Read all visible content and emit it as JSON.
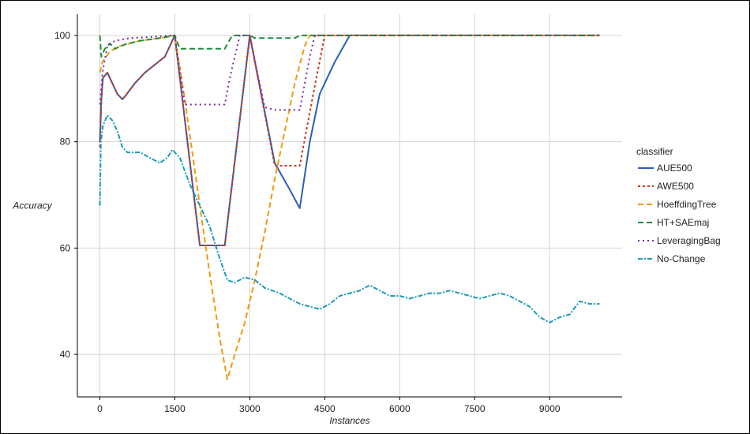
{
  "chart_data": {
    "type": "line",
    "title": "",
    "xlabel": "Instances",
    "ylabel": "Accuracy",
    "xlim": [
      -450,
      10450
    ],
    "ylim": [
      32,
      104
    ],
    "x_ticks": [
      0,
      1500,
      3000,
      4500,
      6000,
      7500,
      9000
    ],
    "x_tick_labels": [
      "0",
      "1500",
      "3000",
      "4500",
      "6000",
      "7500",
      "9000"
    ],
    "y_ticks": [
      40,
      60,
      80,
      100
    ],
    "y_tick_labels": [
      "40",
      "60",
      "80",
      "100"
    ],
    "grid": true,
    "legend": {
      "title": "classifier",
      "position": "right"
    },
    "series": [
      {
        "name": "AUE500",
        "color": "#2b5fb5",
        "dash": "solid",
        "points": [
          [
            0,
            80
          ],
          [
            30,
            88
          ],
          [
            60,
            92
          ],
          [
            150,
            93
          ],
          [
            250,
            91
          ],
          [
            350,
            89
          ],
          [
            450,
            88
          ],
          [
            500,
            88.5
          ],
          [
            700,
            91
          ],
          [
            900,
            93
          ],
          [
            1100,
            94.5
          ],
          [
            1300,
            96
          ],
          [
            1400,
            98
          ],
          [
            1500,
            100
          ],
          [
            2000,
            60.5
          ],
          [
            2500,
            60.5
          ],
          [
            3000,
            100
          ],
          [
            3500,
            76
          ],
          [
            3800,
            71
          ],
          [
            4000,
            67.5
          ],
          [
            4200,
            80
          ],
          [
            4400,
            89
          ],
          [
            4700,
            95
          ],
          [
            5000,
            100
          ],
          [
            6000,
            100
          ],
          [
            7000,
            100
          ],
          [
            8000,
            100
          ],
          [
            9000,
            100
          ],
          [
            10000,
            100
          ]
        ]
      },
      {
        "name": "AWE500",
        "color": "#c8391c",
        "dash": "3,3",
        "points": [
          [
            0,
            79
          ],
          [
            30,
            88
          ],
          [
            60,
            92
          ],
          [
            150,
            93
          ],
          [
            250,
            91
          ],
          [
            350,
            89
          ],
          [
            450,
            88
          ],
          [
            500,
            88.5
          ],
          [
            700,
            91
          ],
          [
            900,
            93
          ],
          [
            1100,
            94.5
          ],
          [
            1300,
            96
          ],
          [
            1400,
            98
          ],
          [
            1500,
            100
          ],
          [
            2000,
            60.5
          ],
          [
            2500,
            60.5
          ],
          [
            3000,
            100
          ],
          [
            3500,
            75.5
          ],
          [
            4000,
            75.5
          ],
          [
            4250,
            88
          ],
          [
            4500,
            100
          ],
          [
            6000,
            100
          ],
          [
            7000,
            100
          ],
          [
            8000,
            100
          ],
          [
            9000,
            100
          ],
          [
            10000,
            100
          ]
        ]
      },
      {
        "name": "HoeffdingTree",
        "color": "#ee9b0c",
        "dash": "7,4",
        "points": [
          [
            0,
            93
          ],
          [
            50,
            95
          ],
          [
            200,
            97
          ],
          [
            400,
            98
          ],
          [
            800,
            99
          ],
          [
            1200,
            99.5
          ],
          [
            1500,
            100
          ],
          [
            1700,
            88
          ],
          [
            2000,
            68
          ],
          [
            2200,
            55
          ],
          [
            2400,
            43
          ],
          [
            2550,
            35.3
          ],
          [
            2700,
            40
          ],
          [
            2900,
            46
          ],
          [
            3100,
            54
          ],
          [
            3300,
            63
          ],
          [
            3500,
            73
          ],
          [
            3700,
            82
          ],
          [
            3900,
            91
          ],
          [
            4100,
            98
          ],
          [
            4200,
            100
          ],
          [
            5000,
            100
          ],
          [
            6000,
            100
          ],
          [
            7000,
            100
          ],
          [
            8000,
            100
          ],
          [
            9000,
            100
          ],
          [
            10000,
            100
          ]
        ]
      },
      {
        "name": "HT+SAEmaj",
        "color": "#1e8e3a",
        "dash": "7,4",
        "points": [
          [
            0,
            100
          ],
          [
            30,
            96
          ],
          [
            100,
            97.5
          ],
          [
            200,
            98.5
          ],
          [
            300,
            97.5
          ],
          [
            500,
            98.3
          ],
          [
            800,
            99
          ],
          [
            1200,
            99.5
          ],
          [
            1500,
            100
          ],
          [
            1600,
            97.5
          ],
          [
            2500,
            97.5
          ],
          [
            2650,
            100
          ],
          [
            3000,
            100
          ],
          [
            3100,
            99.5
          ],
          [
            3900,
            99.5
          ],
          [
            4000,
            100
          ],
          [
            5000,
            100
          ],
          [
            6000,
            100
          ],
          [
            7000,
            100
          ],
          [
            8000,
            100
          ],
          [
            9000,
            100
          ],
          [
            10000,
            100
          ]
        ]
      },
      {
        "name": "LeveragingBag",
        "color": "#7b2a9c",
        "dash": "2,4",
        "points": [
          [
            0,
            87
          ],
          [
            50,
            93
          ],
          [
            150,
            98
          ],
          [
            300,
            99
          ],
          [
            600,
            99.5
          ],
          [
            1000,
            99.7
          ],
          [
            1400,
            100
          ],
          [
            1500,
            100
          ],
          [
            1700,
            87
          ],
          [
            2000,
            87
          ],
          [
            2500,
            87
          ],
          [
            2600,
            92
          ],
          [
            2800,
            100
          ],
          [
            3000,
            100
          ],
          [
            3150,
            93
          ],
          [
            3300,
            86.5
          ],
          [
            3500,
            86
          ],
          [
            4000,
            86
          ],
          [
            4200,
            96
          ],
          [
            4300,
            100
          ],
          [
            5000,
            100
          ],
          [
            6000,
            100
          ],
          [
            7000,
            100
          ],
          [
            8000,
            100
          ],
          [
            9000,
            100
          ],
          [
            10000,
            100
          ]
        ]
      },
      {
        "name": "No-Change",
        "color": "#1b9ab8",
        "dash": "6,2,2,2",
        "points": [
          [
            0,
            68
          ],
          [
            20,
            80
          ],
          [
            60,
            83
          ],
          [
            150,
            85
          ],
          [
            250,
            84
          ],
          [
            350,
            82
          ],
          [
            450,
            79
          ],
          [
            550,
            78
          ],
          [
            800,
            78
          ],
          [
            1000,
            77
          ],
          [
            1200,
            76
          ],
          [
            1350,
            77
          ],
          [
            1450,
            78.5
          ],
          [
            1600,
            77
          ],
          [
            1800,
            72
          ],
          [
            2000,
            68
          ],
          [
            2200,
            64
          ],
          [
            2400,
            58
          ],
          [
            2550,
            54
          ],
          [
            2700,
            53.5
          ],
          [
            2900,
            54.5
          ],
          [
            3100,
            54
          ],
          [
            3300,
            52.5
          ],
          [
            3600,
            51.5
          ],
          [
            3800,
            50.5
          ],
          [
            4000,
            49.5
          ],
          [
            4200,
            49
          ],
          [
            4400,
            48.5
          ],
          [
            4600,
            49.5
          ],
          [
            4800,
            51
          ],
          [
            5000,
            51.5
          ],
          [
            5200,
            52
          ],
          [
            5400,
            53
          ],
          [
            5600,
            52
          ],
          [
            5800,
            51
          ],
          [
            6000,
            51
          ],
          [
            6200,
            50.5
          ],
          [
            6400,
            51
          ],
          [
            6600,
            51.5
          ],
          [
            6800,
            51.5
          ],
          [
            7000,
            52
          ],
          [
            7200,
            51.5
          ],
          [
            7400,
            51
          ],
          [
            7600,
            50.5
          ],
          [
            7800,
            51
          ],
          [
            8000,
            51.5
          ],
          [
            8200,
            51
          ],
          [
            8400,
            50
          ],
          [
            8600,
            49
          ],
          [
            8800,
            47
          ],
          [
            9000,
            46
          ],
          [
            9200,
            47
          ],
          [
            9400,
            47.5
          ],
          [
            9600,
            50
          ],
          [
            9800,
            49.5
          ],
          [
            10000,
            49.5
          ]
        ]
      }
    ]
  }
}
